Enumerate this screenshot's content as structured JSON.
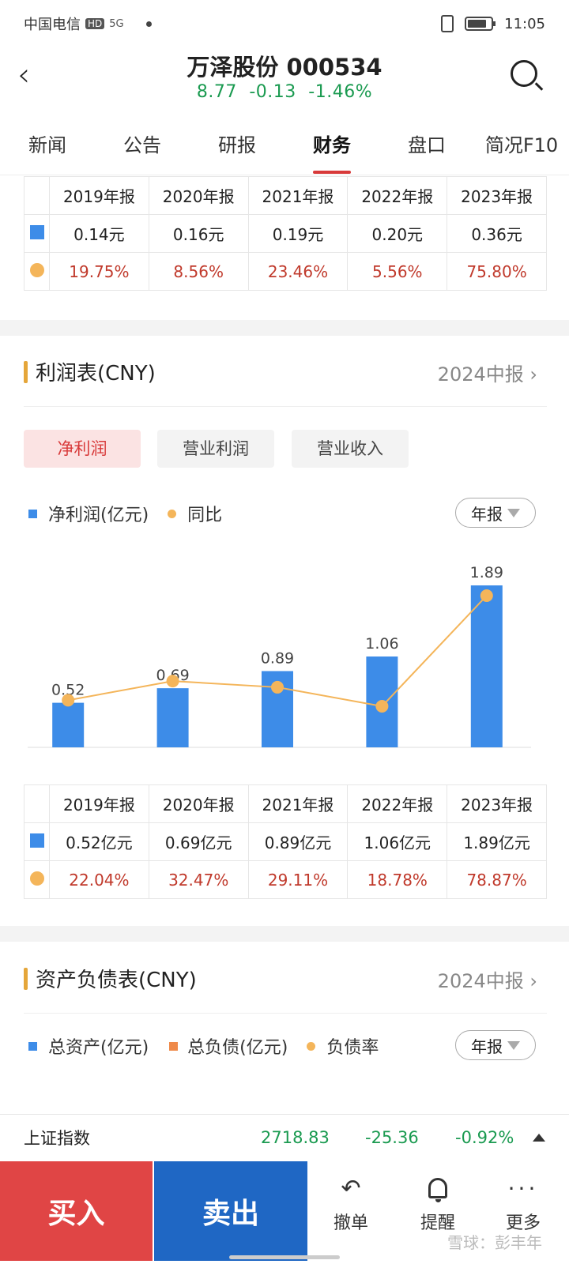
{
  "status": {
    "carrier": "中国电信",
    "hd": "HD",
    "net": "5G",
    "time": "11:05"
  },
  "header": {
    "back": "‹",
    "title": "万泽股份 000534",
    "price": "8.77",
    "change": "-0.13",
    "pct": "-1.46%"
  },
  "tabs": [
    "新闻",
    "公告",
    "研报",
    "财务",
    "盘口",
    "简况F10"
  ],
  "eps_table": {
    "years": [
      "2019年报",
      "2020年报",
      "2021年报",
      "2022年报",
      "2023年报"
    ],
    "values": [
      "0.14元",
      "0.16元",
      "0.19元",
      "0.20元",
      "0.36元"
    ],
    "yoy": [
      "19.75%",
      "8.56%",
      "23.46%",
      "5.56%",
      "75.80%"
    ]
  },
  "income": {
    "title": "利润表(CNY)",
    "period_link": "2024中报",
    "chips": [
      "净利润",
      "营业利润",
      "营业收入"
    ],
    "legend_bar": "净利润(亿元)",
    "legend_line": "同比",
    "period": "年报"
  },
  "chart_data": {
    "type": "bar",
    "categories": [
      "2019年报",
      "2020年报",
      "2021年报",
      "2022年报",
      "2023年报"
    ],
    "series": [
      {
        "name": "净利润(亿元)",
        "type": "bar",
        "values": [
          0.52,
          0.69,
          0.89,
          1.06,
          1.89
        ]
      },
      {
        "name": "同比",
        "type": "line",
        "values": [
          22.04,
          32.47,
          29.11,
          18.78,
          78.87
        ]
      }
    ],
    "data_labels": [
      "0.52",
      "0.69",
      "0.89",
      "1.06",
      "1.89"
    ],
    "bar_color": "#3d8ce8",
    "line_color": "#f4b55a",
    "grid": false
  },
  "income_table": {
    "years": [
      "2019年报",
      "2020年报",
      "2021年报",
      "2022年报",
      "2023年报"
    ],
    "values": [
      "0.52亿元",
      "0.69亿元",
      "0.89亿元",
      "1.06亿元",
      "1.89亿元"
    ],
    "yoy": [
      "22.04%",
      "32.47%",
      "29.11%",
      "18.78%",
      "78.87%"
    ]
  },
  "balance": {
    "title": "资产负债表(CNY)",
    "period_link": "2024中报",
    "legend_assets": "总资产(亿元)",
    "legend_liab": "总负债(亿元)",
    "legend_ratio": "负债率",
    "period": "年报"
  },
  "ticker": {
    "name": "上证指数",
    "value": "2718.83",
    "change": "-25.36",
    "pct": "-0.92%"
  },
  "bottom": {
    "buy": "买入",
    "sell": "卖出",
    "undo": "撤单",
    "remind": "提醒",
    "more": "更多",
    "watermark": "雪球：彭丰年"
  },
  "colors": {
    "up": "#c0392b",
    "down": "#1a9a50",
    "accent": "#d83a3a",
    "buy": "#e04545",
    "sell": "#1f67c4"
  }
}
